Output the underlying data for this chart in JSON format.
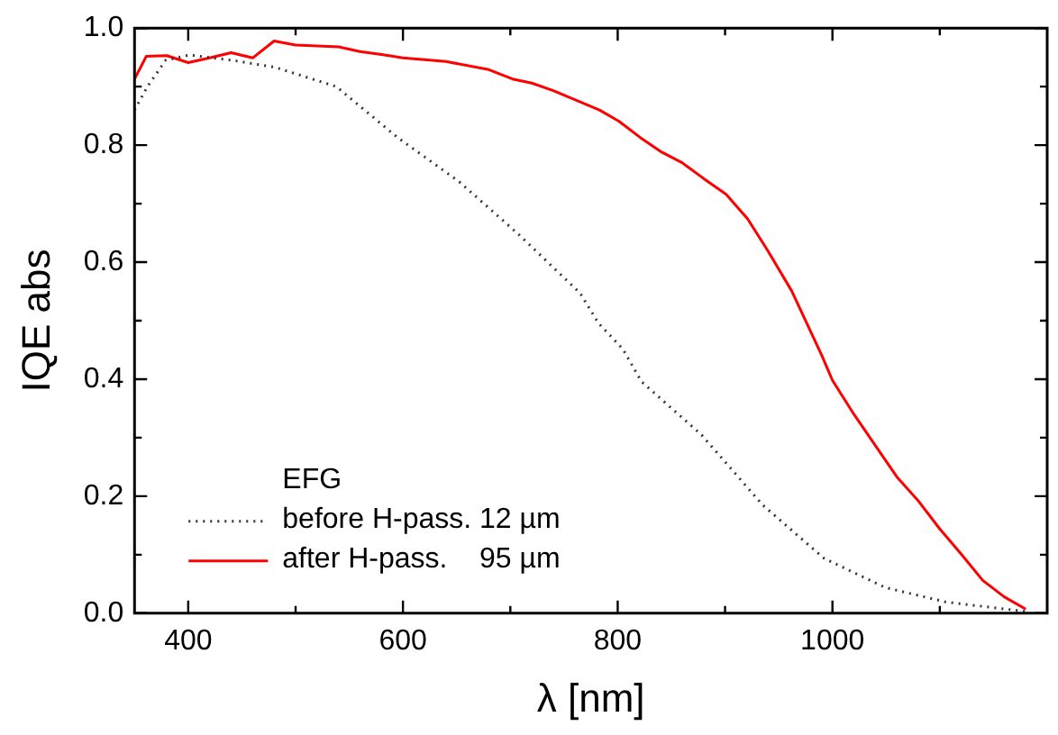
{
  "chart_data": {
    "type": "line",
    "xlabel": "λ [nm]",
    "ylabel": "IQE abs",
    "legend_title": "EFG",
    "legend": "bottom left",
    "xlim": [
      350,
      1200
    ],
    "ylim": [
      0,
      1.0
    ],
    "xticks": [
      400,
      {
        "value": 500,
        "label": null
      },
      600,
      {
        "value": 700,
        "label": null
      },
      800,
      {
        "value": 900,
        "label": null
      },
      1000,
      {
        "value": 1100,
        "label": null
      }
    ],
    "yticks": [
      {
        "value": 0,
        "label": "0.0"
      },
      {
        "value": 0.1,
        "label": null
      },
      0.2,
      {
        "value": 0.3,
        "label": null
      },
      0.4,
      {
        "value": 0.5,
        "label": null
      },
      0.6,
      {
        "value": 0.7,
        "label": null
      },
      0.8,
      {
        "value": 0.9,
        "label": null
      },
      {
        "value": 1.0,
        "label": "1.0"
      }
    ],
    "series": [
      {
        "name": "before H-pass. 12 µm",
        "color": "#333333",
        "line_style": "dotted",
        "x": [
          350,
          362,
          379,
          401,
          441,
          481,
          538,
          595,
          652,
          708,
          765,
          782,
          805,
          822,
          878,
          935,
          992,
          1049,
          1106,
          1180
        ],
        "values": [
          0.86,
          0.9,
          0.945,
          0.954,
          0.945,
          0.933,
          0.9,
          0.813,
          0.738,
          0.647,
          0.547,
          0.496,
          0.451,
          0.396,
          0.305,
          0.185,
          0.094,
          0.044,
          0.019,
          0.003
        ]
      },
      {
        "name": "after H-pass.    95 µm",
        "color": "#ff0000",
        "line_style": "solid",
        "x": [
          350,
          361,
          380,
          400,
          420,
          440,
          460,
          480,
          500,
          540,
          560,
          580,
          600,
          640,
          680,
          702,
          720,
          740,
          783,
          801,
          821,
          841,
          860,
          880,
          901,
          921,
          940,
          962,
          990,
          1000,
          1020,
          1060,
          1080,
          1100,
          1120,
          1140,
          1160,
          1180
        ],
        "values": [
          0.913,
          0.952,
          0.953,
          0.941,
          0.949,
          0.958,
          0.949,
          0.978,
          0.971,
          0.968,
          0.96,
          0.955,
          0.949,
          0.943,
          0.929,
          0.913,
          0.906,
          0.893,
          0.86,
          0.841,
          0.813,
          0.788,
          0.77,
          0.743,
          0.716,
          0.674,
          0.619,
          0.551,
          0.441,
          0.398,
          0.34,
          0.233,
          0.192,
          0.144,
          0.101,
          0.056,
          0.028,
          0.007
        ]
      }
    ]
  }
}
